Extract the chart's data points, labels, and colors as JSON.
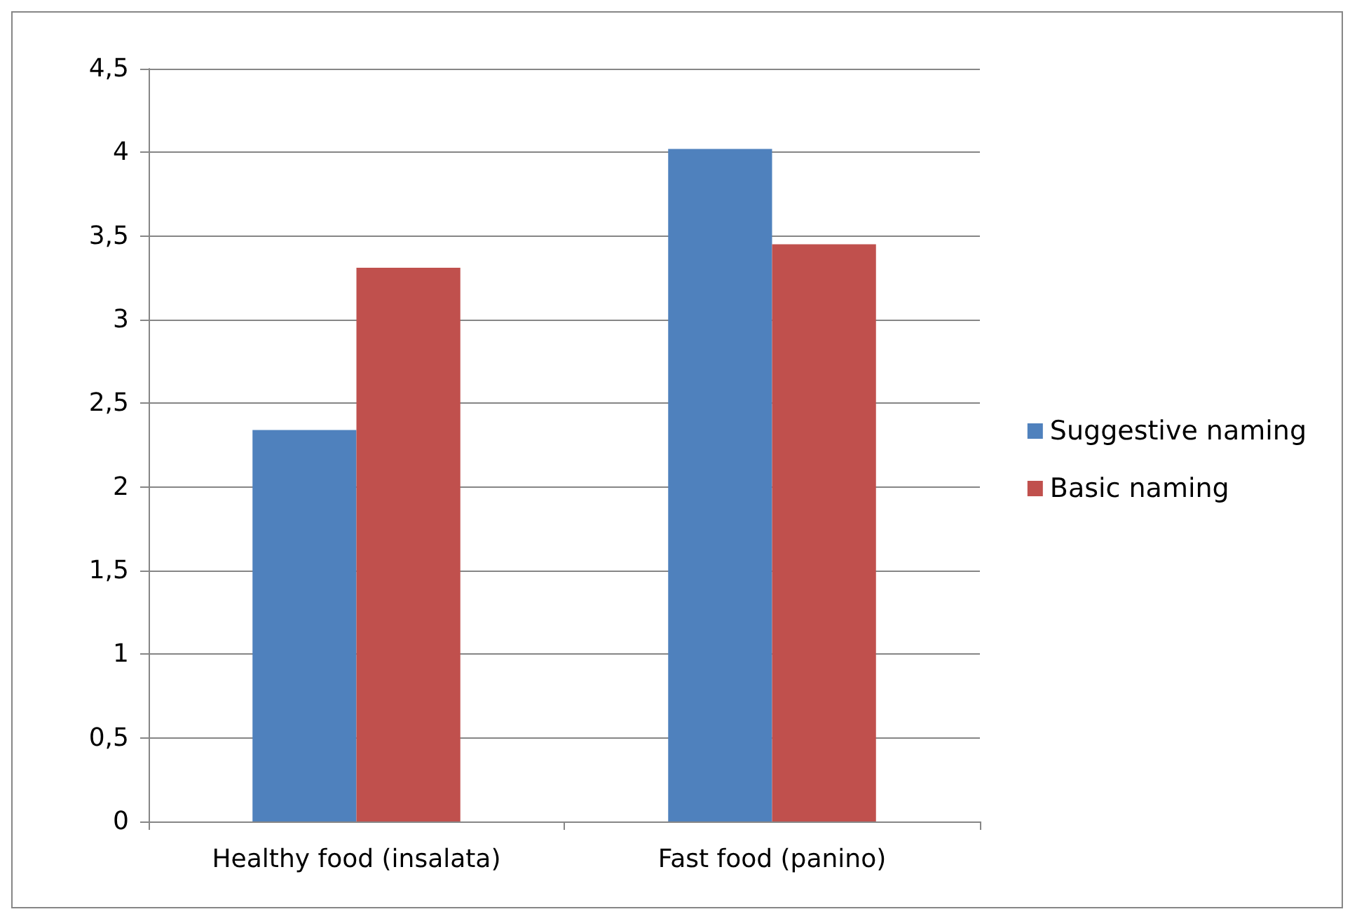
{
  "chart_data": {
    "type": "bar",
    "categories": [
      "Healthy food (insalata)",
      "Fast food (panino)"
    ],
    "series": [
      {
        "name": "Suggestive naming",
        "color": "#4f81bd",
        "values": [
          2.34,
          4.02
        ]
      },
      {
        "name": "Basic naming",
        "color": "#c0504d",
        "values": [
          3.31,
          3.45
        ]
      }
    ],
    "ylim": [
      0,
      4.5
    ],
    "yticks": [
      0,
      {
        "value": 0.5,
        "label": "0,5"
      },
      1,
      {
        "value": 1.5,
        "label": "1,5"
      },
      2,
      {
        "value": 2.5,
        "label": "2,5"
      },
      3,
      {
        "value": 3.5,
        "label": "3,5"
      },
      4,
      {
        "value": 4.5,
        "label": "4,5"
      }
    ],
    "grid": "y",
    "legend": "right"
  }
}
